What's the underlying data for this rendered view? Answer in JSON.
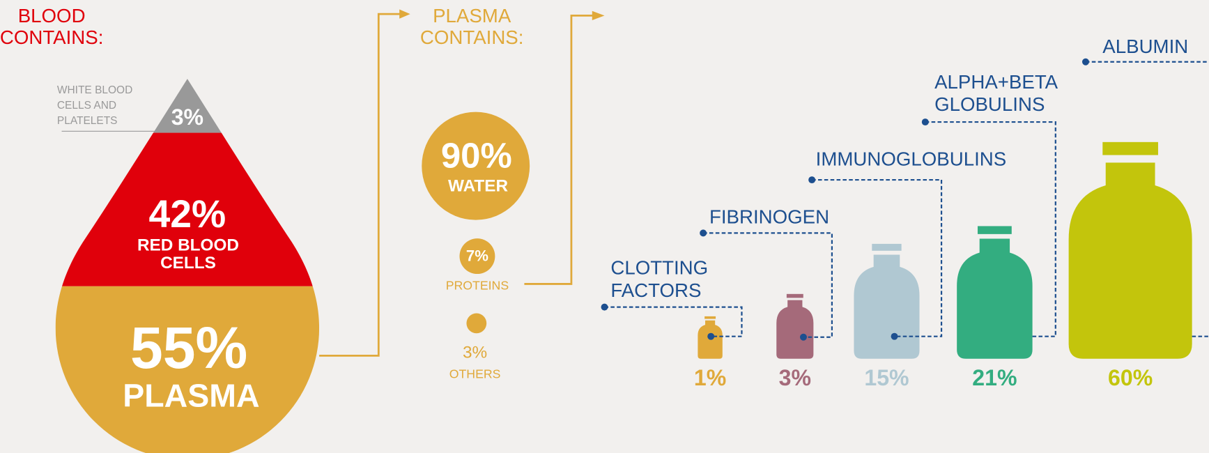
{
  "blood": {
    "title": [
      "BLOOD",
      "CONTAINS:"
    ],
    "white_cells": {
      "label": [
        "WHITE BLOOD",
        "CELLS AND",
        "PLATELETS"
      ],
      "percent": "3%"
    },
    "red_cells": {
      "percent": "42%",
      "label": [
        "RED BLOOD",
        "CELLS"
      ]
    },
    "plasma": {
      "percent": "55%",
      "label": "PLASMA"
    }
  },
  "plasma": {
    "title": [
      "PLASMA",
      "CONTAINS:"
    ],
    "water": {
      "percent": "90%",
      "label": "WATER"
    },
    "proteins": {
      "percent": "7%",
      "label": "PROTEINS"
    },
    "others": {
      "percent": "3%",
      "label": "OTHERS"
    }
  },
  "proteins": [
    {
      "label": [
        "CLOTTING",
        "FACTORS"
      ],
      "percent": "1%",
      "color": "#e0a93a"
    },
    {
      "label": [
        "FIBRINOGEN"
      ],
      "percent": "3%",
      "color": "#a56a7a"
    },
    {
      "label": [
        "IMMUNOGLOBULINS"
      ],
      "percent": "15%",
      "color": "#b0c8d2"
    },
    {
      "label": [
        "ALPHA+BETA",
        "GLOBULINS"
      ],
      "percent": "21%",
      "color": "#33ad80"
    },
    {
      "label": [
        "ALBUMIN"
      ],
      "percent": "60%",
      "color": "#c3c50c"
    }
  ]
}
